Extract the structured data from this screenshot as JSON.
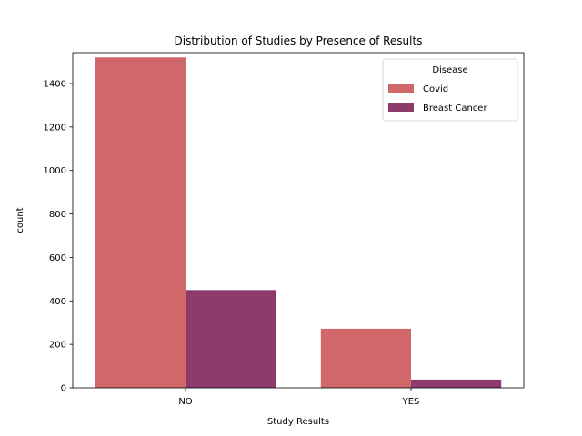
{
  "chart_data": {
    "type": "bar",
    "title": "Distribution of Studies by Presence of Results",
    "xlabel": "Study Results",
    "ylabel": "count",
    "categories": [
      "NO",
      "YES"
    ],
    "series": [
      {
        "name": "Covid",
        "values": [
          1520,
          272
        ],
        "color": "#d0686a"
      },
      {
        "name": "Breast Cancer",
        "values": [
          450,
          38
        ],
        "color": "#8c3b6b"
      }
    ],
    "ylim": [
      0,
      1542
    ],
    "yticks": [
      0,
      200,
      400,
      600,
      800,
      1000,
      1200,
      1400
    ],
    "legend": {
      "title": "Disease",
      "placement": "top-right"
    },
    "grid": false
  }
}
